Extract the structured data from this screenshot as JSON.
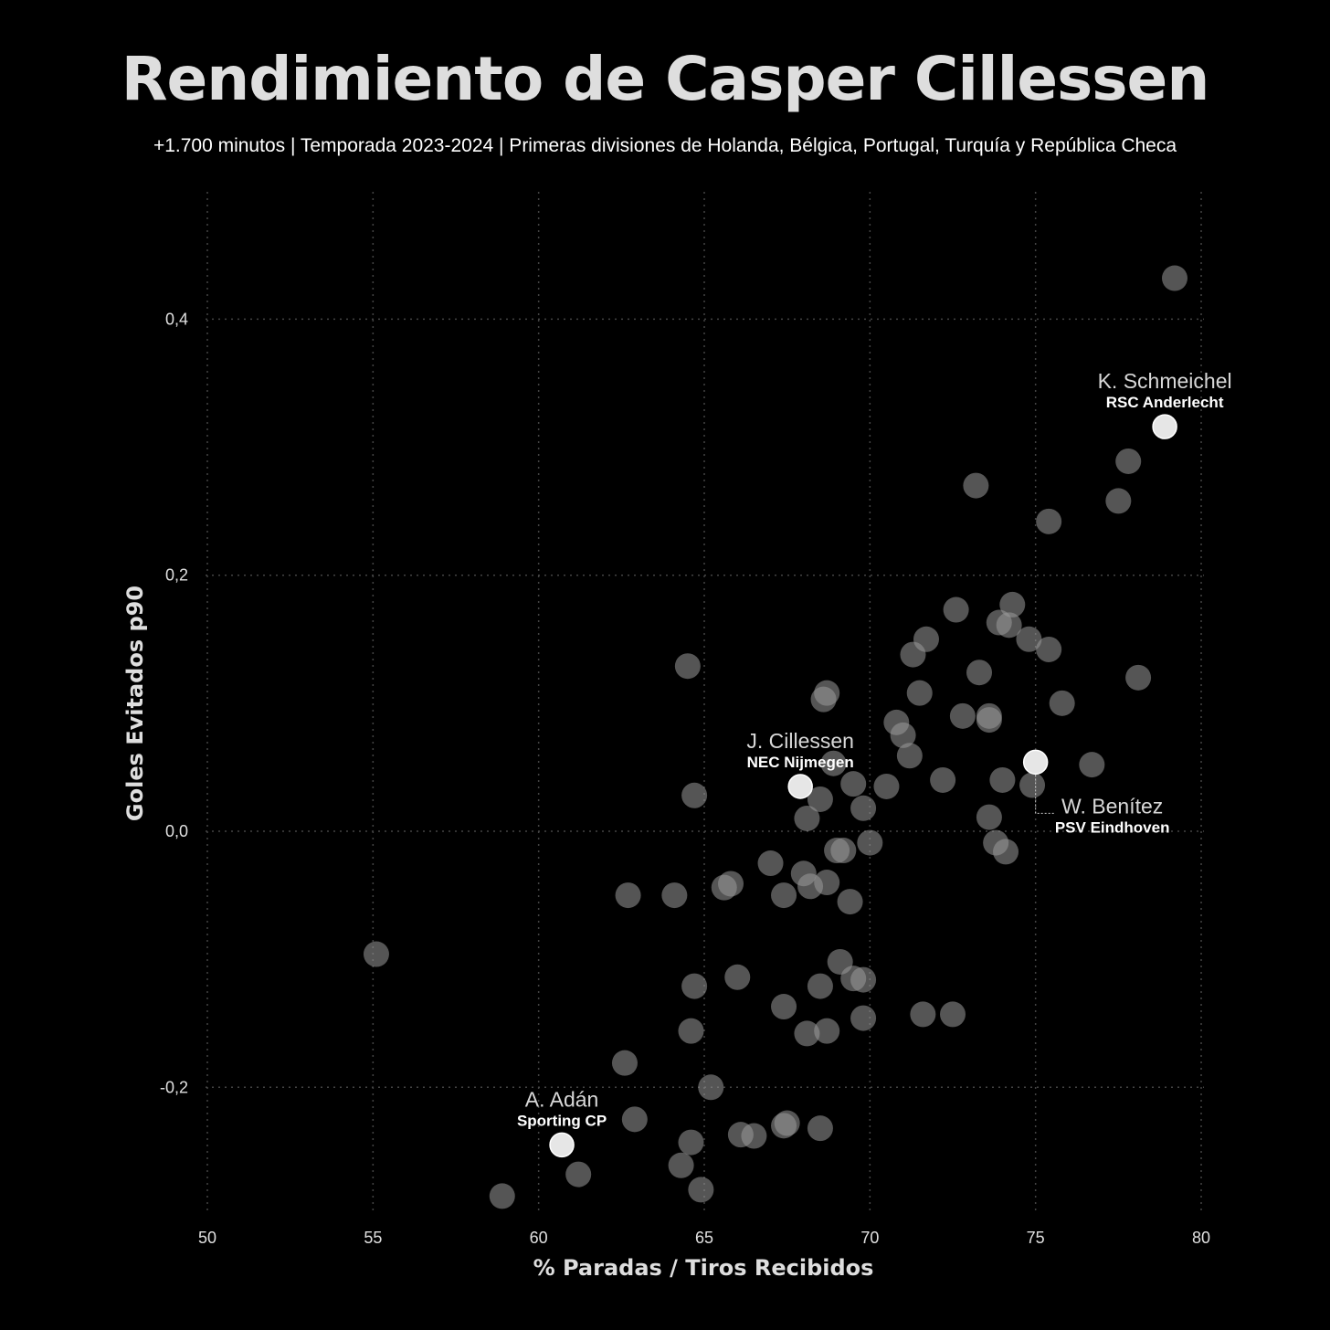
{
  "chart_data": {
    "type": "scatter",
    "title": "Rendimiento de Casper Cillessen",
    "subtitle": "+1.700 minutos | Temporada 2023-2024 | Primeras divisiones de Holanda, Bélgica, Portugal, Turquía y República Checa",
    "xlabel": "% Paradas / Tiros Recibidos",
    "ylabel": "Goles Evitados p90",
    "xlim": [
      50,
      80
    ],
    "ylim": [
      -0.3,
      0.5
    ],
    "xticks": [
      {
        "value": 50,
        "label": "50"
      },
      {
        "value": 55,
        "label": "55"
      },
      {
        "value": 60,
        "label": "60"
      },
      {
        "value": 65,
        "label": "65"
      },
      {
        "value": 70,
        "label": "70"
      },
      {
        "value": 75,
        "label": "75"
      },
      {
        "value": 80,
        "label": "80"
      }
    ],
    "yticks": [
      {
        "value": 0.4,
        "label": "0,4"
      },
      {
        "value": 0.2,
        "label": "0,2"
      },
      {
        "value": 0.0,
        "label": "0,0"
      },
      {
        "value": -0.2,
        "label": "-0,2"
      }
    ],
    "grid": true,
    "colors": {
      "point": "#9a9a9a",
      "highlight": "#ffffff",
      "grid": "#444444"
    },
    "points": [
      [
        79.2,
        0.432
      ],
      [
        77.8,
        0.289
      ],
      [
        77.5,
        0.258
      ],
      [
        75.4,
        0.242
      ],
      [
        73.2,
        0.27
      ],
      [
        72.6,
        0.173
      ],
      [
        74.3,
        0.177
      ],
      [
        73.9,
        0.163
      ],
      [
        74.2,
        0.161
      ],
      [
        74.8,
        0.15
      ],
      [
        75.4,
        0.142
      ],
      [
        71.7,
        0.15
      ],
      [
        71.3,
        0.138
      ],
      [
        73.3,
        0.124
      ],
      [
        78.1,
        0.12
      ],
      [
        71.5,
        0.108
      ],
      [
        75.8,
        0.1
      ],
      [
        68.7,
        0.108
      ],
      [
        68.6,
        0.103
      ],
      [
        64.5,
        0.129
      ],
      [
        70.8,
        0.085
      ],
      [
        71.0,
        0.075
      ],
      [
        72.8,
        0.09
      ],
      [
        73.6,
        0.09
      ],
      [
        73.6,
        0.087
      ],
      [
        71.2,
        0.059
      ],
      [
        76.7,
        0.052
      ],
      [
        68.9,
        0.053
      ],
      [
        74.0,
        0.04
      ],
      [
        74.9,
        0.036
      ],
      [
        72.2,
        0.04
      ],
      [
        70.5,
        0.035
      ],
      [
        69.5,
        0.037
      ],
      [
        68.5,
        0.025
      ],
      [
        69.8,
        0.018
      ],
      [
        64.7,
        0.028
      ],
      [
        68.1,
        0.01
      ],
      [
        73.6,
        0.011
      ],
      [
        73.8,
        -0.009
      ],
      [
        74.1,
        -0.016
      ],
      [
        69.2,
        -0.015
      ],
      [
        69.0,
        -0.015
      ],
      [
        70.0,
        -0.009
      ],
      [
        67.0,
        -0.025
      ],
      [
        68.0,
        -0.033
      ],
      [
        68.7,
        -0.04
      ],
      [
        68.2,
        -0.043
      ],
      [
        65.6,
        -0.044
      ],
      [
        65.8,
        -0.041
      ],
      [
        67.4,
        -0.05
      ],
      [
        69.4,
        -0.055
      ],
      [
        62.7,
        -0.05
      ],
      [
        64.1,
        -0.05
      ],
      [
        55.1,
        -0.096
      ],
      [
        69.1,
        -0.102
      ],
      [
        66.0,
        -0.114
      ],
      [
        69.5,
        -0.115
      ],
      [
        69.8,
        -0.116
      ],
      [
        64.7,
        -0.121
      ],
      [
        68.5,
        -0.121
      ],
      [
        67.4,
        -0.137
      ],
      [
        71.6,
        -0.143
      ],
      [
        72.5,
        -0.143
      ],
      [
        69.8,
        -0.146
      ],
      [
        64.6,
        -0.156
      ],
      [
        68.1,
        -0.158
      ],
      [
        68.7,
        -0.156
      ],
      [
        62.6,
        -0.181
      ],
      [
        65.2,
        -0.2
      ],
      [
        62.9,
        -0.225
      ],
      [
        67.5,
        -0.228
      ],
      [
        67.4,
        -0.23
      ],
      [
        68.5,
        -0.232
      ],
      [
        66.1,
        -0.237
      ],
      [
        66.5,
        -0.238
      ],
      [
        64.6,
        -0.243
      ],
      [
        64.3,
        -0.261
      ],
      [
        61.2,
        -0.268
      ],
      [
        64.9,
        -0.28
      ],
      [
        58.9,
        -0.285
      ]
    ],
    "highlights": [
      {
        "name": "K. Schmeichel",
        "team": "RSC Anderlecht",
        "x": 78.9,
        "y": 0.316
      },
      {
        "name": "J. Cillessen",
        "team": "NEC Nijmegen",
        "x": 67.9,
        "y": 0.035
      },
      {
        "name": "W. Benítez",
        "team": "PSV Eindhoven",
        "x": 75.0,
        "y": 0.054
      },
      {
        "name": "A. Adán",
        "team": "Sporting CP",
        "x": 60.7,
        "y": -0.245
      }
    ]
  }
}
